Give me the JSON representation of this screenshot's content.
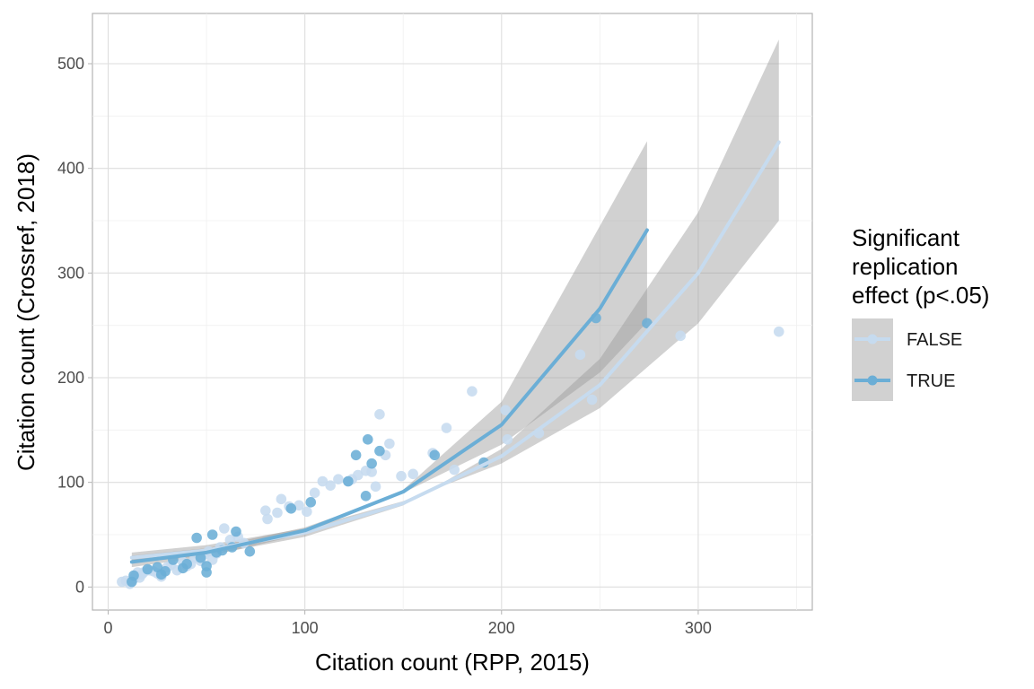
{
  "chart_data": {
    "type": "scatter",
    "xlabel": "Citation count (RPP, 2015)",
    "ylabel": "Citation count (Crossref, 2018)",
    "xlim": [
      -8,
      358
    ],
    "ylim": [
      -22,
      548
    ],
    "x_ticks": [
      0,
      100,
      200,
      300
    ],
    "y_ticks": [
      0,
      100,
      200,
      300,
      400,
      500
    ],
    "grid": true,
    "legend": {
      "title": [
        "Significant",
        "replication",
        "effect (p<.05)"
      ],
      "position": "right",
      "entries": [
        {
          "label": "FALSE",
          "color": "#c6dbef"
        },
        {
          "label": "TRUE",
          "color": "#6baed6"
        }
      ]
    },
    "series": [
      {
        "name": "FALSE",
        "color": "#c6dbef",
        "points": [
          [
            7,
            5
          ],
          [
            9,
            6
          ],
          [
            11,
            3
          ],
          [
            13,
            8
          ],
          [
            14,
            11
          ],
          [
            15,
            14
          ],
          [
            16,
            9
          ],
          [
            17,
            12
          ],
          [
            18,
            14
          ],
          [
            21,
            16
          ],
          [
            23,
            15
          ],
          [
            25,
            13
          ],
          [
            27,
            10
          ],
          [
            30,
            19
          ],
          [
            32,
            21
          ],
          [
            35,
            16
          ],
          [
            38,
            24
          ],
          [
            40,
            20
          ],
          [
            42,
            22
          ],
          [
            44,
            28
          ],
          [
            47,
            25
          ],
          [
            49,
            31
          ],
          [
            51,
            34
          ],
          [
            53,
            26
          ],
          [
            55,
            32
          ],
          [
            57,
            38
          ],
          [
            59,
            56
          ],
          [
            62,
            45
          ],
          [
            66,
            48
          ],
          [
            69,
            42
          ],
          [
            80,
            73
          ],
          [
            81,
            65
          ],
          [
            86,
            71
          ],
          [
            88,
            84
          ],
          [
            92,
            77
          ],
          [
            97,
            78
          ],
          [
            101,
            72
          ],
          [
            105,
            90
          ],
          [
            109,
            101
          ],
          [
            113,
            97
          ],
          [
            117,
            103
          ],
          [
            122,
            101
          ],
          [
            124,
            103
          ],
          [
            127,
            107
          ],
          [
            131,
            111
          ],
          [
            134,
            110
          ],
          [
            136,
            96
          ],
          [
            138,
            165
          ],
          [
            141,
            126
          ],
          [
            143,
            137
          ],
          [
            149,
            106
          ],
          [
            155,
            108
          ],
          [
            165,
            128
          ],
          [
            172,
            152
          ],
          [
            176,
            112
          ],
          [
            185,
            187
          ],
          [
            202,
            169
          ],
          [
            203,
            141
          ],
          [
            219,
            147
          ],
          [
            240,
            222
          ],
          [
            246,
            179
          ],
          [
            291,
            240
          ],
          [
            341,
            244
          ]
        ],
        "curve": {
          "x": [
            12,
            50,
            100,
            150,
            200,
            250,
            300,
            341
          ],
          "y": [
            28,
            35,
            52,
            80,
            125,
            193,
            300,
            425
          ]
        },
        "band_low": [
          33,
          40,
          56,
          82,
          118,
          171,
          252,
          350
        ],
        "band_high": [
          23,
          30,
          48,
          78,
          132,
          218,
          358,
          523
        ]
      },
      {
        "name": "TRUE",
        "color": "#6baed6",
        "points": [
          [
            12,
            5
          ],
          [
            13,
            11
          ],
          [
            20,
            17
          ],
          [
            25,
            19
          ],
          [
            27,
            12
          ],
          [
            29,
            15
          ],
          [
            33,
            26
          ],
          [
            38,
            18
          ],
          [
            40,
            22
          ],
          [
            45,
            47
          ],
          [
            47,
            28
          ],
          [
            50,
            14
          ],
          [
            50,
            20
          ],
          [
            53,
            50
          ],
          [
            55,
            33
          ],
          [
            58,
            35
          ],
          [
            63,
            38
          ],
          [
            65,
            53
          ],
          [
            72,
            34
          ],
          [
            93,
            75
          ],
          [
            103,
            81
          ],
          [
            122,
            101
          ],
          [
            126,
            126
          ],
          [
            131,
            87
          ],
          [
            132,
            141
          ],
          [
            134,
            118
          ],
          [
            138,
            130
          ],
          [
            166,
            126
          ],
          [
            191,
            119
          ],
          [
            248,
            257
          ],
          [
            274,
            252
          ]
        ],
        "curve": {
          "x": [
            12,
            50,
            100,
            150,
            200,
            250,
            274
          ],
          "y": [
            24,
            33,
            54,
            91,
            155,
            266,
            341
          ]
        },
        "band_low": [
          30,
          37,
          57,
          90,
          136,
          205,
          253
        ],
        "band_high": [
          19,
          29,
          51,
          93,
          177,
          345,
          426
        ]
      }
    ]
  }
}
